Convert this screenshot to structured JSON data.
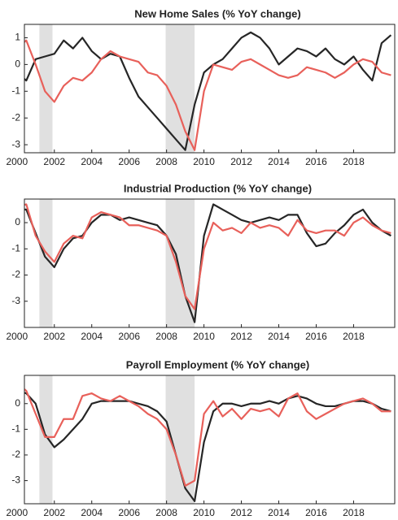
{
  "chart_data": [
    {
      "type": "line",
      "title": "New Home Sales (% YoY change)",
      "x": [
        2000,
        2000.5,
        2001,
        2001.5,
        2002,
        2002.5,
        2003,
        2003.5,
        2004,
        2004.5,
        2005,
        2005.5,
        2006,
        2006.5,
        2007,
        2007.5,
        2008,
        2008.5,
        2009,
        2009.5,
        2010,
        2010.5,
        2011,
        2011.5,
        2012,
        2012.5,
        2013,
        2013.5,
        2014,
        2014.5,
        2015,
        2015.5,
        2016,
        2016.5,
        2017,
        2017.5,
        2018,
        2018.5,
        2019,
        2019.5,
        2020
      ],
      "series": [
        {
          "color": "#262626",
          "values": [
            -0.3,
            -0.6,
            0.2,
            0.3,
            0.4,
            0.9,
            0.6,
            1.0,
            0.5,
            0.2,
            0.4,
            0.3,
            -0.5,
            -1.2,
            -1.6,
            -2.0,
            -2.4,
            -2.8,
            -3.2,
            -1.5,
            -0.3,
            0.0,
            0.2,
            0.6,
            1.0,
            1.2,
            1.0,
            0.6,
            0.0,
            0.3,
            0.6,
            0.5,
            0.3,
            0.6,
            0.2,
            0.0,
            0.3,
            -0.2,
            -0.6,
            0.8,
            1.1
          ]
        },
        {
          "color": "#e8605a",
          "values": [
            0.6,
            0.9,
            0.0,
            -1.0,
            -1.4,
            -0.8,
            -0.5,
            -0.6,
            -0.3,
            0.2,
            0.5,
            0.3,
            0.2,
            0.1,
            -0.3,
            -0.4,
            -0.8,
            -1.5,
            -2.5,
            -3.2,
            -1.0,
            0.0,
            -0.1,
            -0.2,
            0.1,
            0.2,
            0.0,
            -0.2,
            -0.4,
            -0.5,
            -0.4,
            -0.1,
            -0.2,
            -0.3,
            -0.5,
            -0.3,
            0.0,
            0.2,
            0.1,
            -0.3,
            -0.4
          ]
        }
      ],
      "shaded_periods": [
        [
          2001.2,
          2001.9
        ],
        [
          2007.95,
          2009.5
        ]
      ],
      "shade_color": "#e0e0e0",
      "xlim": [
        2000.4,
        2020.2
      ],
      "xticks": [
        2000,
        2002,
        2004,
        2006,
        2008,
        2010,
        2012,
        2014,
        2016,
        2018
      ],
      "ylim": [
        -3.3,
        1.5
      ],
      "yticks": [
        -3,
        -2,
        -1,
        0,
        1
      ]
    },
    {
      "type": "line",
      "title": "Industrial Production  (% YoY change)",
      "x": [
        2000,
        2000.5,
        2001,
        2001.5,
        2002,
        2002.5,
        2003,
        2003.5,
        2004,
        2004.5,
        2005,
        2005.5,
        2006,
        2006.5,
        2007,
        2007.5,
        2008,
        2008.5,
        2009,
        2009.5,
        2010,
        2010.5,
        2011,
        2011.5,
        2012,
        2012.5,
        2013,
        2013.5,
        2014,
        2014.5,
        2015,
        2015.5,
        2016,
        2016.5,
        2017,
        2017.5,
        2018,
        2018.5,
        2019,
        2019.5,
        2020
      ],
      "series": [
        {
          "color": "#262626",
          "values": [
            0.5,
            0.5,
            -0.4,
            -1.3,
            -1.7,
            -1.0,
            -0.6,
            -0.5,
            0.0,
            0.3,
            0.3,
            0.1,
            0.2,
            0.1,
            0.0,
            -0.1,
            -0.5,
            -1.2,
            -2.8,
            -3.8,
            -0.5,
            0.7,
            0.5,
            0.3,
            0.1,
            0.0,
            0.1,
            0.2,
            0.1,
            0.3,
            0.3,
            -0.4,
            -0.9,
            -0.8,
            -0.4,
            -0.1,
            0.3,
            0.5,
            0.0,
            -0.3,
            -0.5
          ]
        },
        {
          "color": "#e8605a",
          "values": [
            0.6,
            0.7,
            -0.5,
            -1.1,
            -1.5,
            -0.8,
            -0.5,
            -0.6,
            0.2,
            0.4,
            0.3,
            0.2,
            -0.1,
            -0.1,
            -0.2,
            -0.3,
            -0.5,
            -1.5,
            -2.8,
            -3.3,
            -1.0,
            0.0,
            -0.3,
            -0.2,
            -0.4,
            0.0,
            -0.2,
            -0.1,
            -0.2,
            -0.5,
            0.1,
            -0.3,
            -0.4,
            -0.3,
            -0.3,
            -0.5,
            0.0,
            0.2,
            -0.1,
            -0.3,
            -0.4
          ]
        }
      ],
      "shaded_periods": [
        [
          2001.2,
          2001.9
        ],
        [
          2007.95,
          2009.5
        ]
      ],
      "shade_color": "#e0e0e0",
      "xlim": [
        2000.4,
        2020.2
      ],
      "xticks": [
        2000,
        2002,
        2004,
        2006,
        2008,
        2010,
        2012,
        2014,
        2016,
        2018
      ],
      "ylim": [
        -4,
        0.9
      ],
      "yticks": [
        -3,
        -2,
        -1,
        0
      ]
    },
    {
      "type": "line",
      "title": "Payroll Employment  (% YoY change)",
      "x": [
        2000,
        2000.5,
        2001,
        2001.5,
        2002,
        2002.5,
        2003,
        2003.5,
        2004,
        2004.5,
        2005,
        2005.5,
        2006,
        2006.5,
        2007,
        2007.5,
        2008,
        2008.5,
        2009,
        2009.5,
        2010,
        2010.5,
        2011,
        2011.5,
        2012,
        2012.5,
        2013,
        2013.5,
        2014,
        2014.5,
        2015,
        2015.5,
        2016,
        2016.5,
        2017,
        2017.5,
        2018,
        2018.5,
        2019,
        2019.5,
        2020
      ],
      "series": [
        {
          "color": "#262626",
          "values": [
            0.5,
            0.4,
            0.0,
            -1.2,
            -1.7,
            -1.4,
            -1.0,
            -0.6,
            0.0,
            0.1,
            0.1,
            0.1,
            0.1,
            0.0,
            -0.1,
            -0.3,
            -0.7,
            -2.0,
            -3.3,
            -3.8,
            -1.5,
            -0.3,
            0.0,
            0.0,
            -0.1,
            0.0,
            0.0,
            0.1,
            0.0,
            0.2,
            0.3,
            0.2,
            0.0,
            -0.1,
            -0.1,
            0.0,
            0.1,
            0.1,
            0.0,
            -0.2,
            -0.3
          ]
        },
        {
          "color": "#e8605a",
          "values": [
            0.8,
            0.5,
            -0.4,
            -1.3,
            -1.3,
            -0.6,
            -0.6,
            0.3,
            0.4,
            0.2,
            0.1,
            0.3,
            0.1,
            -0.1,
            -0.4,
            -0.6,
            -1.0,
            -2.0,
            -3.2,
            -3.0,
            -0.4,
            0.1,
            -0.5,
            -0.2,
            -0.6,
            -0.2,
            -0.3,
            -0.2,
            -0.5,
            0.2,
            0.4,
            -0.3,
            -0.6,
            -0.4,
            -0.2,
            0.0,
            0.1,
            0.2,
            0.0,
            -0.3,
            -0.3
          ]
        }
      ],
      "shaded_periods": [
        [
          2001.2,
          2001.9
        ],
        [
          2007.95,
          2009.5
        ]
      ],
      "shade_color": "#e0e0e0",
      "xlim": [
        2000.4,
        2020.2
      ],
      "xticks": [
        2000,
        2002,
        2004,
        2006,
        2008,
        2010,
        2012,
        2014,
        2016,
        2018
      ],
      "ylim": [
        -3.9,
        1.1
      ],
      "yticks": [
        -3,
        -2,
        -1,
        0
      ]
    }
  ]
}
